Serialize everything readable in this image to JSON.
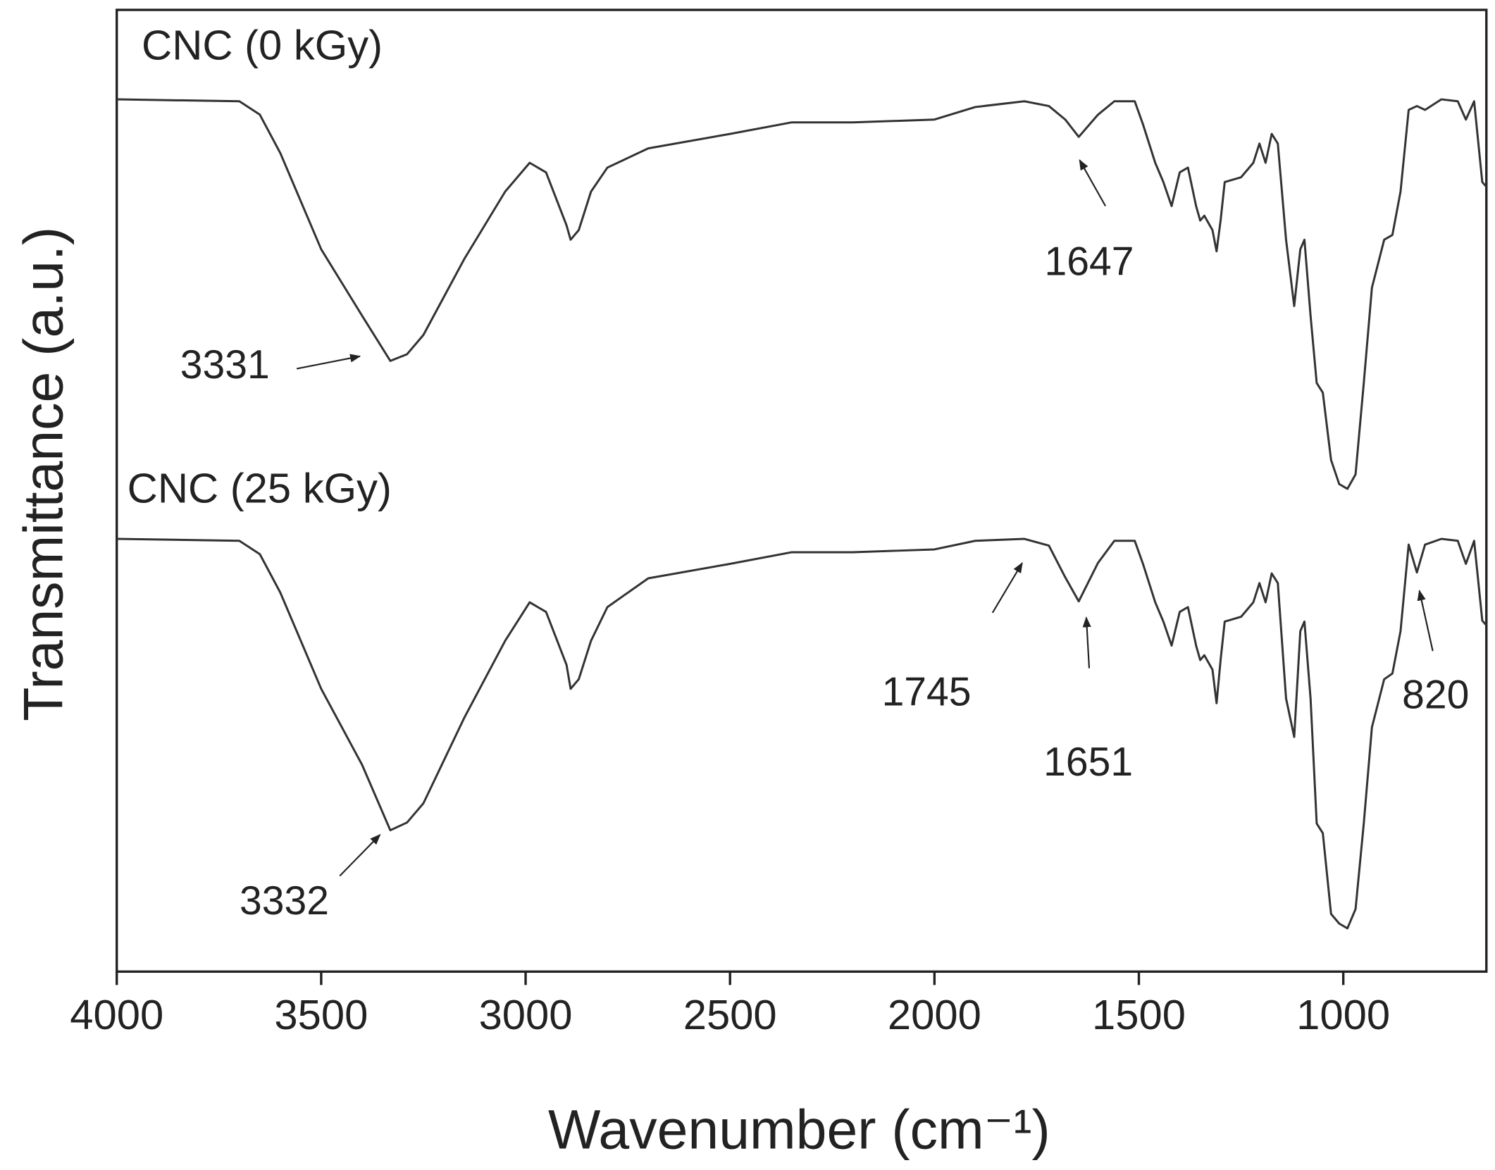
{
  "chart_data": {
    "type": "line",
    "xlabel": "Wavenumber (cm⁻¹)",
    "ylabel": "Transmittance (a.u.)",
    "xlim": [
      4000,
      650
    ],
    "xticks": [
      4000,
      3500,
      3000,
      2500,
      2000,
      1500,
      1000
    ],
    "ylim": [
      0,
      100
    ],
    "x": [
      4000,
      3700,
      3650,
      3600,
      3500,
      3400,
      3331,
      3290,
      3250,
      3150,
      3050,
      2990,
      2950,
      2900,
      2890,
      2870,
      2840,
      2800,
      2700,
      2500,
      2350,
      2200,
      2000,
      1900,
      1780,
      1720,
      1680,
      1647,
      1600,
      1560,
      1510,
      1490,
      1460,
      1440,
      1420,
      1400,
      1380,
      1360,
      1350,
      1340,
      1320,
      1310,
      1300,
      1290,
      1250,
      1220,
      1205,
      1190,
      1175,
      1160,
      1140,
      1120,
      1105,
      1095,
      1080,
      1065,
      1050,
      1030,
      1010,
      990,
      970,
      950,
      930,
      900,
      880,
      860,
      840,
      820,
      800,
      760,
      720,
      700,
      680,
      660,
      650
    ],
    "series": [
      {
        "name": "CNC (0 kGy)",
        "color": "#333333",
        "values": [
          90.7,
          90.5,
          89.1,
          85.1,
          75.1,
          68.2,
          63.5,
          64.2,
          66.2,
          74.1,
          81.1,
          84.1,
          83.1,
          77.6,
          76.1,
          77.1,
          81.1,
          83.6,
          85.6,
          87.1,
          88.3,
          88.3,
          88.6,
          89.9,
          90.5,
          90.0,
          88.6,
          86.8,
          89.1,
          90.5,
          90.5,
          88.1,
          84.1,
          82.1,
          79.6,
          83.1,
          83.6,
          79.6,
          78.1,
          78.6,
          77.1,
          74.9,
          78.1,
          82.1,
          82.6,
          84.1,
          86.1,
          84.1,
          87.1,
          86.1,
          76.1,
          69.2,
          75.1,
          76.1,
          68.2,
          61.2,
          60.2,
          53.2,
          50.7,
          50.2,
          51.7,
          61.2,
          71.1,
          76.1,
          76.6,
          81.1,
          89.6,
          90.0,
          89.6,
          90.7,
          90.5,
          88.6,
          90.5,
          82.1,
          81.6
        ]
      },
      {
        "name": "CNC (25 kGy)",
        "color": "#333333",
        "values": [
          45.0,
          44.8,
          43.4,
          39.4,
          29.4,
          21.5,
          14.7,
          15.5,
          17.5,
          26.4,
          34.4,
          38.4,
          37.4,
          31.9,
          29.4,
          30.4,
          34.4,
          37.9,
          40.9,
          42.4,
          43.6,
          43.6,
          43.9,
          44.8,
          45.0,
          44.3,
          41.0,
          38.5,
          42.5,
          44.8,
          44.8,
          42.4,
          38.4,
          36.4,
          33.9,
          37.4,
          37.9,
          33.9,
          32.4,
          32.9,
          31.4,
          27.9,
          32.4,
          36.4,
          36.9,
          38.4,
          40.4,
          38.4,
          41.4,
          40.4,
          28.4,
          24.4,
          35.4,
          36.4,
          28.4,
          15.4,
          14.4,
          6.0,
          5.0,
          4.5,
          6.5,
          15.4,
          25.4,
          30.4,
          31.0,
          35.4,
          44.4,
          41.5,
          44.4,
          45.0,
          44.8,
          42.4,
          44.8,
          36.5,
          36.0
        ]
      }
    ],
    "annotations": [
      "3331",
      "1647",
      "3332",
      "1745",
      "1651",
      "820"
    ]
  }
}
